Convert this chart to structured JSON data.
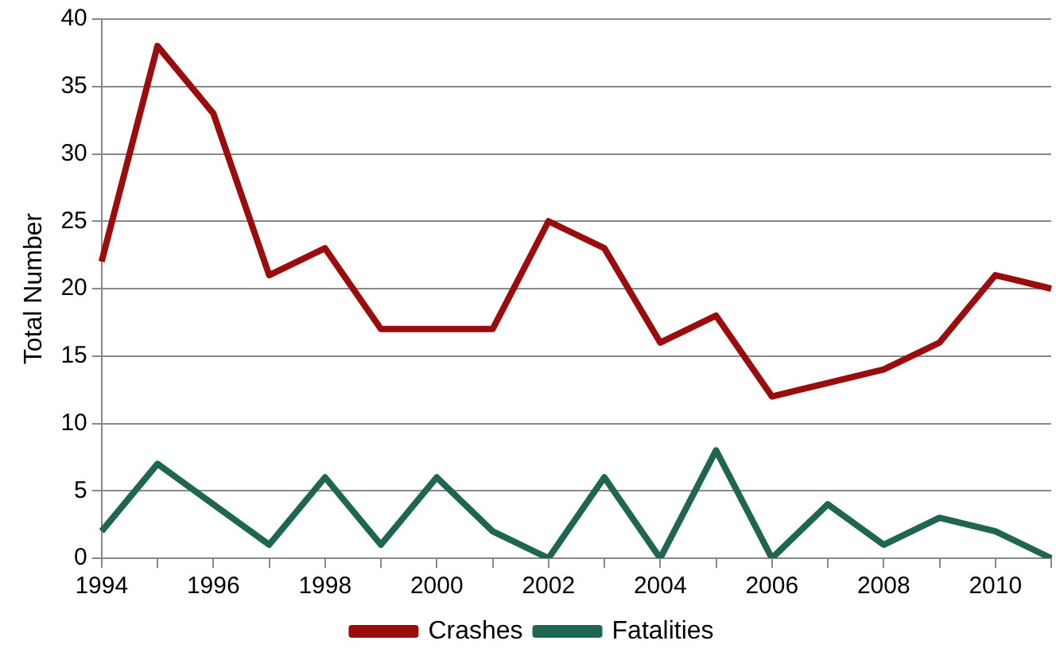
{
  "chart_data": {
    "type": "line",
    "ylabel": "Total Number",
    "categories": [
      "1994",
      null,
      "1996",
      null,
      "1998",
      null,
      "2000",
      null,
      "2002",
      null,
      "2004",
      null,
      "2006",
      null,
      "2008",
      null,
      "2010",
      null
    ],
    "series": [
      {
        "name": "Crashes",
        "color": "#9b0d0d",
        "values": [
          22,
          38,
          33,
          21,
          23,
          17,
          17,
          17,
          25,
          23,
          16,
          18,
          12,
          13,
          14,
          16,
          21,
          20
        ]
      },
      {
        "name": "Fatalities",
        "color": "#1f6650",
        "values": [
          2,
          7,
          4,
          1,
          6,
          1,
          6,
          2,
          0,
          6,
          0,
          8,
          0,
          4,
          1,
          3,
          2,
          0
        ]
      }
    ],
    "ylim": [
      0,
      40
    ],
    "yticks": [
      0,
      5,
      10,
      15,
      20,
      25,
      30,
      35,
      40
    ],
    "grid": "y",
    "legend": "bottom",
    "marker": "none",
    "line_style": "solid"
  }
}
